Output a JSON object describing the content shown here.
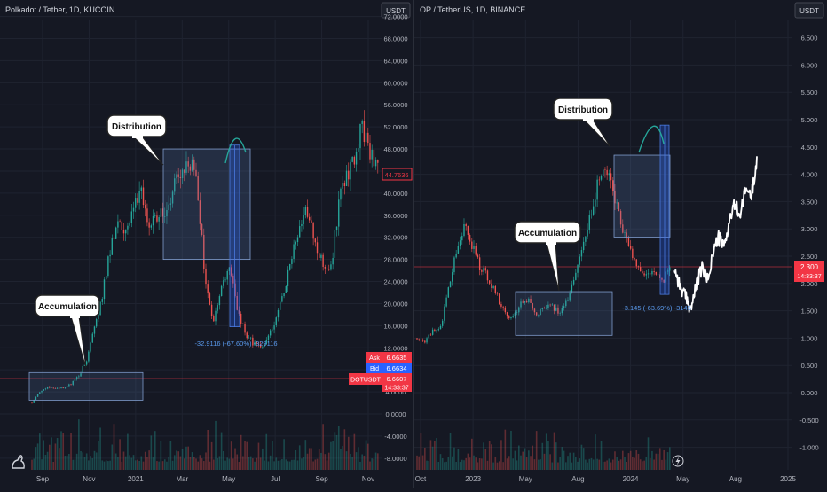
{
  "left_panel": {
    "symbol_label": "Polkadot / Tether, 1D, KUCOIN",
    "currency_button": "USDT",
    "y_ticks": [
      "72.0000",
      "68.0000",
      "64.0000",
      "60.0000",
      "56.0000",
      "52.0000",
      "48.0000",
      "44.0000",
      "40.0000",
      "36.0000",
      "32.0000",
      "28.0000",
      "24.0000",
      "20.0000",
      "16.0000",
      "12.0000",
      "8.0000",
      "4.0000",
      "0.0000",
      "-4.0000",
      "-8.0000"
    ],
    "x_ticks": [
      "Sep",
      "Nov",
      "2021",
      "Mar",
      "May",
      "Jul",
      "Sep",
      "Nov"
    ],
    "current_price_tag": "44.7636",
    "ask_label": "Ask",
    "ask_value": "6.6635",
    "bid_label": "Bid",
    "bid_value": "6.6634",
    "ticker_label": "DOTUSDT",
    "ticker_value": "6.6607",
    "countdown": "14:33:37",
    "annotations": {
      "accumulation": "Accumulation",
      "distribution": "Distribution",
      "drop_label": "-32.9116 (-67.60%) -329116"
    }
  },
  "right_panel": {
    "symbol_label": "OP / TetherUS, 1D, BINANCE",
    "currency_button": "USDT",
    "y_ticks": [
      "6.500",
      "6.000",
      "5.500",
      "5.000",
      "4.500",
      "4.000",
      "3.500",
      "3.000",
      "2.500",
      "2.000",
      "1.500",
      "1.000",
      "0.500",
      "0.000",
      "-0.500",
      "-1.000"
    ],
    "x_ticks": [
      "Oct",
      "2023",
      "May",
      "Aug",
      "2024",
      "May",
      "Aug",
      "2025"
    ],
    "price_tag": "2.300",
    "countdown": "14:33:37",
    "annotations": {
      "accumulation": "Accumulation",
      "distribution": "Distribution",
      "drop_label": "-3.145 (-63.69%) -3145"
    }
  },
  "colors": {
    "background": "#151823",
    "up": "#26a69a",
    "down": "#ef5350",
    "box": "#5b7fb8",
    "price_red": "#f23645",
    "bid_blue": "#2962ff"
  },
  "chart_data": [
    {
      "type": "candlestick",
      "title": "Polkadot / Tether, 1D, KUCOIN",
      "ylim": [
        -8,
        72
      ],
      "x_labels": [
        "Sep",
        "Nov",
        "2021",
        "Mar",
        "May",
        "Jul",
        "Sep",
        "Nov"
      ],
      "close_path": [
        2.0,
        4.0,
        5.0,
        4.5,
        4.8,
        5.5,
        7.0,
        10.0,
        16.0,
        22.0,
        30.0,
        35.0,
        32.0,
        38.0,
        40.0,
        34.0,
        36.0,
        37.0,
        41.0,
        44.0,
        46.0,
        42.0,
        25.0,
        16.0,
        22.0,
        27.0,
        20.0,
        15.0,
        13.0,
        12.0,
        14.0,
        17.0,
        22.0,
        28.0,
        33.0,
        37.0,
        31.0,
        27.0,
        26.0,
        38.0,
        43.0,
        47.0,
        52.0,
        48.0,
        44.7636
      ],
      "boxes": [
        {
          "label": "Accumulation",
          "price_range": [
            2.5,
            7.5
          ]
        },
        {
          "label": "Distribution",
          "price_range": [
            28,
            48
          ]
        }
      ],
      "measure": {
        "label": "-32.9116 (-67.60%) -329116",
        "from": 48.7,
        "to": 15.8
      }
    },
    {
      "type": "candlestick",
      "title": "OP / TetherUS, 1D, BINANCE",
      "ylim": [
        -1.2,
        6.9
      ],
      "x_labels": [
        "Oct",
        "2023",
        "May",
        "Aug",
        "2024",
        "May",
        "Aug",
        "2025"
      ],
      "close_path": [
        1.0,
        0.95,
        1.15,
        1.2,
        1.9,
        2.6,
        3.1,
        2.7,
        2.3,
        2.1,
        1.8,
        1.5,
        1.35,
        1.6,
        1.7,
        1.45,
        1.5,
        1.6,
        1.45,
        1.7,
        2.1,
        2.8,
        3.3,
        3.9,
        4.1,
        3.6,
        3.0,
        2.6,
        2.3,
        2.1,
        2.25,
        2.0,
        2.3
      ],
      "projection": [
        2.3,
        1.95,
        1.75,
        1.55,
        1.95,
        2.3,
        2.05,
        2.55,
        2.85,
        2.65,
        3.15,
        3.45,
        3.25,
        3.75,
        3.6,
        4.3
      ],
      "boxes": [
        {
          "label": "Accumulation",
          "price_range": [
            1.05,
            1.85
          ]
        },
        {
          "label": "Distribution",
          "price_range": [
            2.85,
            4.35
          ]
        }
      ],
      "measure": {
        "label": "-3.145 (-63.69%) -3145",
        "from": 4.9,
        "to": 1.8
      }
    }
  ]
}
